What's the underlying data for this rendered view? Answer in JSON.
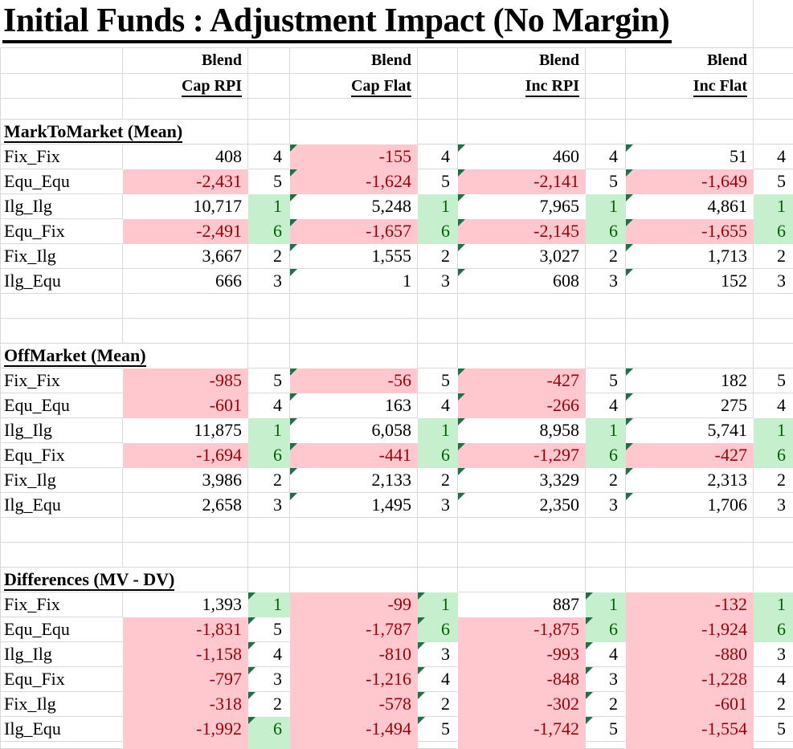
{
  "title": "Initial Funds : Adjustment Impact (No Margin)",
  "colors": {
    "negative_fill": "#ffc7ce",
    "negative_text": "#9c0006",
    "rank_highlight_fill": "#c6efce",
    "rank_highlight_text": "#006100",
    "error_indicator_triangle": "#1e7145",
    "gridline": "#d9d9d9"
  },
  "col_headers": {
    "line1": [
      "Blend",
      "Blend",
      "Blend",
      "Blend"
    ],
    "line2": [
      "Cap RPI",
      "Cap Flat",
      "Inc RPI",
      "Inc Flat"
    ]
  },
  "sections": [
    {
      "name": "MarkToMarket (Mean)",
      "rows": [
        {
          "label": "Fix_Fix",
          "cells": [
            {
              "v": "408",
              "r": "4"
            },
            {
              "v": "-155",
              "r": "4",
              "vt": 1
            },
            {
              "v": "460",
              "r": "4",
              "vt": 1
            },
            {
              "v": "51",
              "r": "4",
              "vt": 1
            }
          ]
        },
        {
          "label": "Equ_Equ",
          "cells": [
            {
              "v": "-2,431",
              "r": "5"
            },
            {
              "v": "-1,624",
              "r": "5",
              "vt": 1
            },
            {
              "v": "-2,141",
              "r": "5",
              "vt": 1
            },
            {
              "v": "-1,649",
              "r": "5",
              "vt": 1
            }
          ]
        },
        {
          "label": "Ilg_Ilg",
          "cells": [
            {
              "v": "10,717",
              "r": "1",
              "rg": 1
            },
            {
              "v": "5,248",
              "r": "1",
              "rg": 1,
              "vt": 1
            },
            {
              "v": "7,965",
              "r": "1",
              "rg": 1,
              "vt": 1
            },
            {
              "v": "4,861",
              "r": "1",
              "rg": 1,
              "vt": 1
            }
          ]
        },
        {
          "label": "Equ_Fix",
          "cells": [
            {
              "v": "-2,491",
              "r": "6",
              "rg": 1
            },
            {
              "v": "-1,657",
              "r": "6",
              "rg": 1,
              "vt": 1
            },
            {
              "v": "-2,145",
              "r": "6",
              "rg": 1,
              "vt": 1
            },
            {
              "v": "-1,655",
              "r": "6",
              "rg": 1,
              "vt": 1
            }
          ]
        },
        {
          "label": "Fix_Ilg",
          "cells": [
            {
              "v": "3,667",
              "r": "2"
            },
            {
              "v": "1,555",
              "r": "2",
              "vt": 1
            },
            {
              "v": "3,027",
              "r": "2",
              "vt": 1
            },
            {
              "v": "1,713",
              "r": "2",
              "vt": 1
            }
          ]
        },
        {
          "label": "Ilg_Equ",
          "cells": [
            {
              "v": "666",
              "r": "3"
            },
            {
              "v": "1",
              "r": "3",
              "vt": 1
            },
            {
              "v": "608",
              "r": "3",
              "vt": 1
            },
            {
              "v": "152",
              "r": "3",
              "vt": 1
            }
          ]
        }
      ]
    },
    {
      "name": "OffMarket (Mean)",
      "rows": [
        {
          "label": "Fix_Fix",
          "cells": [
            {
              "v": "-985",
              "r": "5"
            },
            {
              "v": "-56",
              "r": "5",
              "vt": 1
            },
            {
              "v": "-427",
              "r": "5",
              "vt": 1
            },
            {
              "v": "182",
              "r": "5",
              "vt": 1
            }
          ]
        },
        {
          "label": "Equ_Equ",
          "cells": [
            {
              "v": "-601",
              "r": "4"
            },
            {
              "v": "163",
              "r": "4",
              "vt": 1
            },
            {
              "v": "-266",
              "r": "4",
              "vt": 1
            },
            {
              "v": "275",
              "r": "4",
              "vt": 1
            }
          ]
        },
        {
          "label": "Ilg_Ilg",
          "cells": [
            {
              "v": "11,875",
              "r": "1",
              "rg": 1
            },
            {
              "v": "6,058",
              "r": "1",
              "rg": 1,
              "vt": 1
            },
            {
              "v": "8,958",
              "r": "1",
              "rg": 1,
              "vt": 1
            },
            {
              "v": "5,741",
              "r": "1",
              "rg": 1,
              "vt": 1
            }
          ]
        },
        {
          "label": "Equ_Fix",
          "cells": [
            {
              "v": "-1,694",
              "r": "6",
              "rg": 1
            },
            {
              "v": "-441",
              "r": "6",
              "rg": 1,
              "vt": 1
            },
            {
              "v": "-1,297",
              "r": "6",
              "rg": 1,
              "vt": 1
            },
            {
              "v": "-427",
              "r": "6",
              "rg": 1,
              "vt": 1
            }
          ]
        },
        {
          "label": "Fix_Ilg",
          "cells": [
            {
              "v": "3,986",
              "r": "2"
            },
            {
              "v": "2,133",
              "r": "2",
              "vt": 1
            },
            {
              "v": "3,329",
              "r": "2",
              "vt": 1
            },
            {
              "v": "2,313",
              "r": "2",
              "vt": 1
            }
          ]
        },
        {
          "label": "Ilg_Equ",
          "cells": [
            {
              "v": "2,658",
              "r": "3"
            },
            {
              "v": "1,495",
              "r": "3",
              "vt": 1
            },
            {
              "v": "2,350",
              "r": "3",
              "vt": 1
            },
            {
              "v": "1,706",
              "r": "3",
              "vt": 1
            }
          ]
        }
      ]
    },
    {
      "name": "Differences (MV - DV)",
      "rows": [
        {
          "label": "Fix_Fix",
          "cells": [
            {
              "v": "1,393",
              "r": "1",
              "rg": 1,
              "rt": 1
            },
            {
              "v": "-99",
              "r": "1",
              "rg": 1,
              "rt": 1
            },
            {
              "v": "887",
              "r": "1",
              "rg": 1,
              "rt": 1
            },
            {
              "v": "-132",
              "r": "1",
              "rg": 1
            }
          ]
        },
        {
          "label": "Equ_Equ",
          "cells": [
            {
              "v": "-1,831",
              "r": "5",
              "rt": 1
            },
            {
              "v": "-1,787",
              "r": "6",
              "rg": 1,
              "rt": 1
            },
            {
              "v": "-1,875",
              "r": "6",
              "rg": 1,
              "rt": 1
            },
            {
              "v": "-1,924",
              "r": "6",
              "rg": 1
            }
          ]
        },
        {
          "label": "Ilg_Ilg",
          "cells": [
            {
              "v": "-1,158",
              "r": "4",
              "rt": 1
            },
            {
              "v": "-810",
              "r": "3",
              "rt": 1
            },
            {
              "v": "-993",
              "r": "4",
              "rt": 1
            },
            {
              "v": "-880",
              "r": "3"
            }
          ]
        },
        {
          "label": "Equ_Fix",
          "cells": [
            {
              "v": "-797",
              "r": "3",
              "rt": 1
            },
            {
              "v": "-1,216",
              "r": "4",
              "rt": 1
            },
            {
              "v": "-848",
              "r": "3",
              "rt": 1
            },
            {
              "v": "-1,228",
              "r": "4"
            }
          ]
        },
        {
          "label": "Fix_Ilg",
          "cells": [
            {
              "v": "-318",
              "r": "2",
              "rt": 1
            },
            {
              "v": "-578",
              "r": "2",
              "rt": 1
            },
            {
              "v": "-302",
              "r": "2",
              "rt": 1
            },
            {
              "v": "-601",
              "r": "2"
            }
          ]
        },
        {
          "label": "Ilg_Equ",
          "cells": [
            {
              "v": "-1,992",
              "r": "6",
              "rg": 1,
              "rt": 1
            },
            {
              "v": "-1,494",
              "r": "5",
              "rt": 1
            },
            {
              "v": "-1,742",
              "r": "5",
              "rt": 1
            },
            {
              "v": "-1,554",
              "r": "5"
            }
          ]
        }
      ]
    }
  ],
  "partial_bottom_row_fills": [
    "w",
    "p",
    "g",
    "p",
    "w",
    "p",
    "w",
    "p",
    "w"
  ]
}
